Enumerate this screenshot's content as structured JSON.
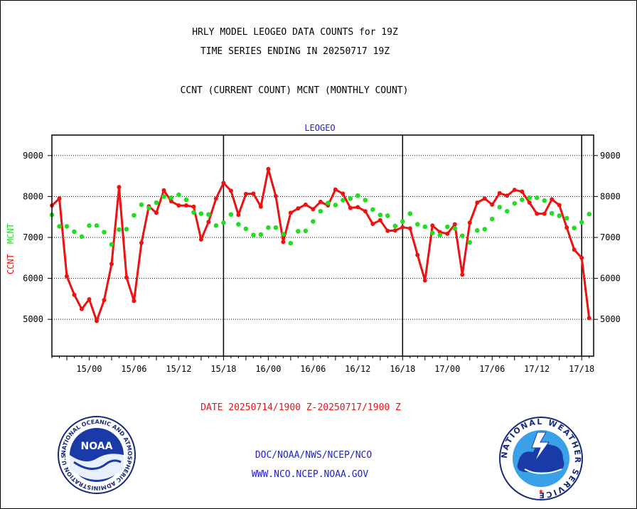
{
  "header": {
    "title_line1": "HRLY MODEL LEOGEO DATA COUNTS for 19Z",
    "title_line2": "TIME SERIES ENDING IN 20250717 19Z",
    "subtitle": "CCNT (CURRENT COUNT) MCNT (MONTHLY COUNT)"
  },
  "footer": {
    "date_range": "DATE 20250714/1900 Z-20250717/1900 Z",
    "link1": "DOC/NOAA/NWS/NCEP/NCO",
    "link2": "WWW.NCO.NCEP.NOAA.GOV",
    "noaa_logo_text": "NOAA",
    "noaa_seal_text": "NATIONAL OCEANIC AND ATMOSPHERIC ADMINISTRATION U.S. DEPARTMENT OF COMMERCE",
    "nws_seal_text": "NATIONAL WEATHER SERVICE"
  },
  "colors": {
    "ccnt": "#ee1111",
    "mcnt": "#22dd22",
    "plot_title": "#2222cc",
    "link": "#2222cc",
    "date": "#ee1111"
  },
  "chart_data": {
    "type": "line",
    "title": "LEOGEO",
    "ylabel_left": "CCNT",
    "ylabel_right": "MCNT",
    "x_tick_labels": [
      "15/00",
      "15/06",
      "15/12",
      "15/18",
      "16/00",
      "16/06",
      "16/12",
      "16/18",
      "17/00",
      "17/06",
      "17/12",
      "17/18"
    ],
    "x_tick_hours": [
      5,
      11,
      17,
      23,
      29,
      35,
      41,
      47,
      53,
      59,
      65,
      71
    ],
    "y_ticks": [
      5000,
      6000,
      7000,
      8000,
      9000
    ],
    "ylim": [
      4100,
      9500
    ],
    "xlim": [
      0,
      72.6
    ],
    "day_boundaries_hours": [
      23,
      47,
      71
    ],
    "grid": "horizontal-dotted",
    "series": [
      {
        "name": "CCNT",
        "x": [
          0,
          1,
          2,
          3,
          4,
          5,
          6,
          7,
          8,
          9,
          10,
          11,
          12,
          13,
          14,
          15,
          16,
          17,
          18,
          19,
          20,
          21,
          22,
          23,
          24,
          25,
          26,
          27,
          28,
          29,
          30,
          31,
          32,
          33,
          34,
          35,
          36,
          37,
          38,
          39,
          40,
          41,
          42,
          43,
          44,
          45,
          46,
          47,
          48,
          49,
          50,
          51,
          52,
          53,
          54,
          55,
          56,
          57,
          58,
          59,
          60,
          61,
          62,
          63,
          64,
          65,
          66,
          67,
          68,
          69,
          70,
          71,
          72
        ],
        "values": [
          7780,
          7950,
          6050,
          5600,
          5250,
          5490,
          4960,
          5470,
          6350,
          8230,
          6020,
          5450,
          6870,
          7760,
          7600,
          8150,
          7880,
          7780,
          7780,
          7750,
          6950,
          7380,
          7950,
          8330,
          8140,
          7550,
          8060,
          8070,
          7750,
          8670,
          8010,
          6890,
          7600,
          7710,
          7800,
          7690,
          7870,
          7780,
          8170,
          8070,
          7720,
          7740,
          7640,
          7330,
          7420,
          7160,
          7170,
          7250,
          7220,
          6570,
          5950,
          7290,
          7130,
          7090,
          7320,
          6090,
          7360,
          7850,
          7950,
          7800,
          8080,
          8020,
          8160,
          8120,
          7850,
          7580,
          7580,
          7930,
          7790,
          7240,
          6700,
          6500,
          5030
        ]
      },
      {
        "name": "MCNT",
        "x": [
          0,
          1,
          2,
          3,
          4,
          5,
          6,
          7,
          8,
          9,
          10,
          11,
          12,
          13,
          14,
          15,
          16,
          17,
          18,
          19,
          20,
          21,
          22,
          23,
          24,
          25,
          26,
          27,
          28,
          29,
          30,
          31,
          32,
          33,
          34,
          35,
          36,
          37,
          38,
          39,
          40,
          41,
          42,
          43,
          44,
          45,
          46,
          47,
          48,
          49,
          50,
          51,
          52,
          53,
          54,
          55,
          56,
          57,
          58,
          59,
          60,
          61,
          62,
          63,
          64,
          65,
          66,
          67,
          68,
          69,
          70,
          71,
          72
        ],
        "values": [
          7550,
          7270,
          7270,
          7140,
          7020,
          7290,
          7290,
          7130,
          6830,
          7190,
          7200,
          7540,
          7800,
          7720,
          7850,
          8000,
          7970,
          8040,
          7920,
          7610,
          7580,
          7560,
          7290,
          7360,
          7560,
          7320,
          7210,
          7060,
          7070,
          7240,
          7240,
          7080,
          6860,
          7150,
          7160,
          7390,
          7640,
          7840,
          7790,
          7910,
          7950,
          8020,
          7910,
          7680,
          7550,
          7530,
          7280,
          7390,
          7580,
          7320,
          7260,
          7110,
          7060,
          7260,
          7220,
          7040,
          6880,
          7170,
          7200,
          7450,
          7740,
          7640,
          7830,
          7920,
          7970,
          7970,
          7900,
          7590,
          7530,
          7470,
          7230,
          7370,
          7570
        ]
      }
    ]
  }
}
